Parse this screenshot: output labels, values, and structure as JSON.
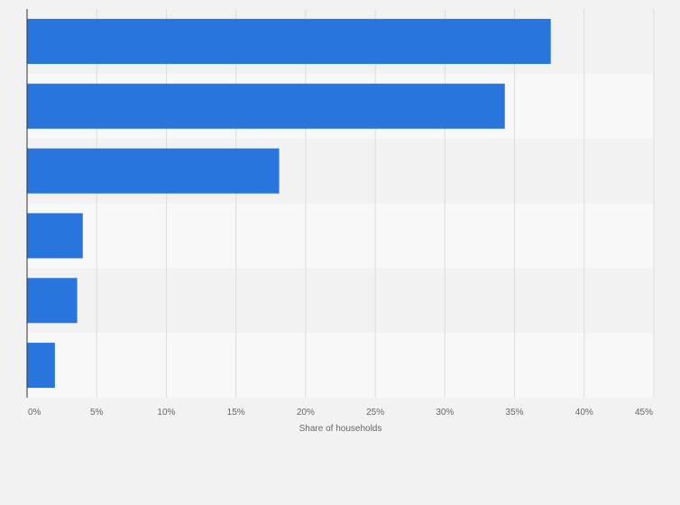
{
  "chart_data": {
    "type": "bar",
    "orientation": "horizontal",
    "categories": [
      "",
      "",
      "",
      "",
      "",
      ""
    ],
    "series": [
      {
        "values": [
          37.6,
          34.3,
          18.1,
          4.0,
          3.6,
          2.0
        ],
        "color": "#2876dd"
      }
    ],
    "xlabel": "Share of households",
    "ylabel": "",
    "xlim": [
      0,
      45
    ],
    "x_ticks": [
      0,
      5,
      10,
      15,
      20,
      25,
      30,
      35,
      40,
      45
    ],
    "tick_labels": [
      "0%",
      "5%",
      "10%",
      "15%",
      "20%",
      "25%",
      "30%",
      "35%",
      "40%",
      "45%"
    ],
    "grid": true,
    "legend": "none",
    "colors": {
      "bar": "#2876dd",
      "background": "#f2f2f2",
      "band_dark": "#f2f2f2",
      "band_light": "#f8f8f8",
      "gridline": "#dcdcdc",
      "axis": "#333333",
      "text": "#666666"
    }
  }
}
